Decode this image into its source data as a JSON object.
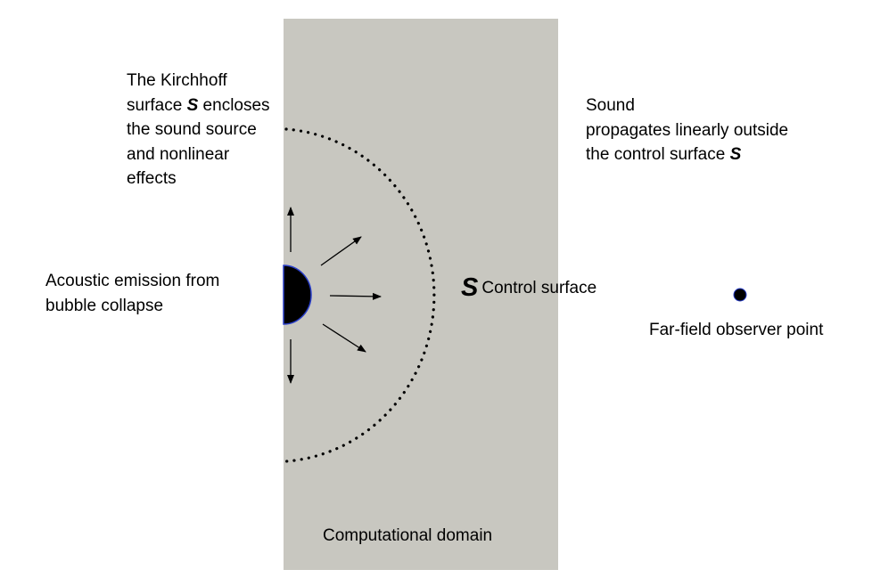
{
  "labels": {
    "kirchhoff": {
      "line1": "The Kirchhoff",
      "line2_pre": "surface ",
      "line2_symbol": "S",
      "line2_post": " encloses",
      "line3": "the sound source",
      "line4": "and nonlinear",
      "line5": "effects"
    },
    "sound": {
      "line1": "Sound",
      "line2": "propagates linearly outside",
      "line3_pre": "the control surface ",
      "line3_symbol": "S"
    },
    "emission": {
      "line1": "Acoustic emission from",
      "line2": "bubble collapse"
    },
    "control": {
      "symbol": "S",
      "text": "Control surface"
    },
    "observer": "Far-field observer point",
    "domain": "Computational domain"
  },
  "colors": {
    "domain_fill": "#c8c7c0",
    "bubble_fill": "#000000",
    "bubble_edge": "#2a3fc9",
    "ink": "#000000"
  }
}
